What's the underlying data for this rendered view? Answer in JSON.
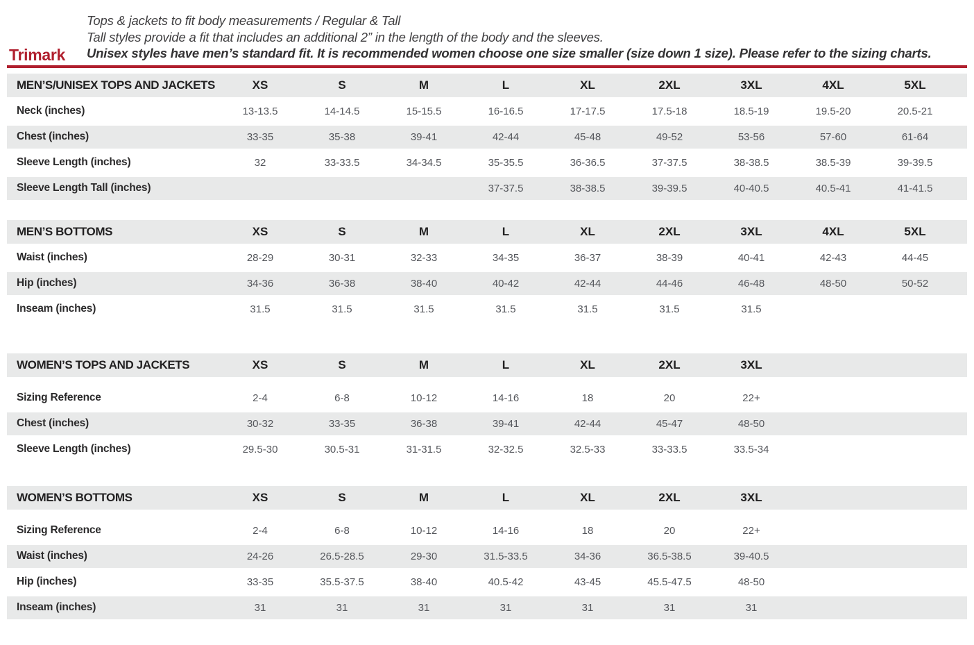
{
  "header": {
    "brand": "Trimark",
    "notes": [
      "Tops & jackets to fit body measurements / Regular & Tall",
      "Tall styles provide a fit that includes an additional 2” in the length of the body and the sleeves.",
      "Unisex styles have men’s standard fit. It is recommended women choose one size smaller (size down 1 size).  Please refer to the sizing charts."
    ]
  },
  "colors": {
    "accent_red": "#b01f2e",
    "row_shade": "#e8e9e9"
  },
  "tables": [
    {
      "id": "mens-unisex-tops-and-jackets",
      "title": "MEN’S/UNISEX TOPS AND JACKETS",
      "header_gap": false,
      "columns": [
        "XS",
        "S",
        "M",
        "L",
        "XL",
        "2XL",
        "3XL",
        "4XL",
        "5XL"
      ],
      "rows": [
        {
          "label": "Neck (inches)",
          "values": [
            "13-13.5",
            "14-14.5",
            "15-15.5",
            "16-16.5",
            "17-17.5",
            "17.5-18",
            "18.5-19",
            "19.5-20",
            "20.5-21"
          ]
        },
        {
          "label": "Chest (inches)",
          "values": [
            "33-35",
            "35-38",
            "39-41",
            "42-44",
            "45-48",
            "49-52",
            "53-56",
            "57-60",
            "61-64"
          ]
        },
        {
          "label": "Sleeve Length (inches)",
          "values": [
            "32",
            "33-33.5",
            "34-34.5",
            "35-35.5",
            "36-36.5",
            "37-37.5",
            "38-38.5",
            "38.5-39",
            "39-39.5"
          ]
        },
        {
          "label": "Sleeve Length Tall (inches)",
          "values": [
            "",
            "",
            "",
            "37-37.5",
            "38-38.5",
            "39-39.5",
            "40-40.5",
            "40.5-41",
            "41-41.5"
          ]
        }
      ]
    },
    {
      "id": "mens-bottoms",
      "title": "MEN’S BOTTOMS",
      "header_gap": false,
      "columns": [
        "XS",
        "S",
        "M",
        "L",
        "XL",
        "2XL",
        "3XL",
        "4XL",
        "5XL"
      ],
      "rows": [
        {
          "label": "Waist (inches)",
          "values": [
            "28-29",
            "30-31",
            "32-33",
            "34-35",
            "36-37",
            "38-39",
            "40-41",
            "42-43",
            "44-45"
          ]
        },
        {
          "label": "Hip (inches)",
          "values": [
            "34-36",
            "36-38",
            "38-40",
            "40-42",
            "42-44",
            "44-46",
            "46-48",
            "48-50",
            "50-52"
          ]
        },
        {
          "label": "Inseam (inches)",
          "values": [
            "31.5",
            "31.5",
            "31.5",
            "31.5",
            "31.5",
            "31.5",
            "31.5",
            "",
            ""
          ]
        }
      ]
    },
    {
      "id": "womens-tops-and-jackets",
      "title": "WOMEN’S TOPS AND JACKETS",
      "header_gap": true,
      "columns": [
        "XS",
        "S",
        "M",
        "L",
        "XL",
        "2XL",
        "3XL"
      ],
      "rows": [
        {
          "label": "Sizing Reference",
          "values": [
            "2-4",
            "6-8",
            "10-12",
            "14-16",
            "18",
            "20",
            "22+"
          ]
        },
        {
          "label": "Chest (inches)",
          "values": [
            "30-32",
            "33-35",
            "36-38",
            "39-41",
            "42-44",
            "45-47",
            "48-50"
          ]
        },
        {
          "label": "Sleeve Length (inches)",
          "values": [
            "29.5-30",
            "30.5-31",
            "31-31.5",
            "32-32.5",
            "32.5-33",
            "33-33.5",
            "33.5-34"
          ]
        }
      ]
    },
    {
      "id": "womens-bottoms",
      "title": "WOMEN’S BOTTOMS",
      "header_gap": true,
      "columns": [
        "XS",
        "S",
        "M",
        "L",
        "XL",
        "2XL",
        "3XL"
      ],
      "rows": [
        {
          "label": "Sizing Reference",
          "values": [
            "2-4",
            "6-8",
            "10-12",
            "14-16",
            "18",
            "20",
            "22+"
          ]
        },
        {
          "label": "Waist (inches)",
          "values": [
            "24-26",
            "26.5-28.5",
            "29-30",
            "31.5-33.5",
            "34-36",
            "36.5-38.5",
            "39-40.5"
          ]
        },
        {
          "label": "Hip (inches)",
          "values": [
            "33-35",
            "35.5-37.5",
            "38-40",
            "40.5-42",
            "43-45",
            "45.5-47.5",
            "48-50"
          ]
        },
        {
          "label": "Inseam (inches)",
          "values": [
            "31",
            "31",
            "31",
            "31",
            "31",
            "31",
            "31"
          ]
        }
      ]
    }
  ]
}
